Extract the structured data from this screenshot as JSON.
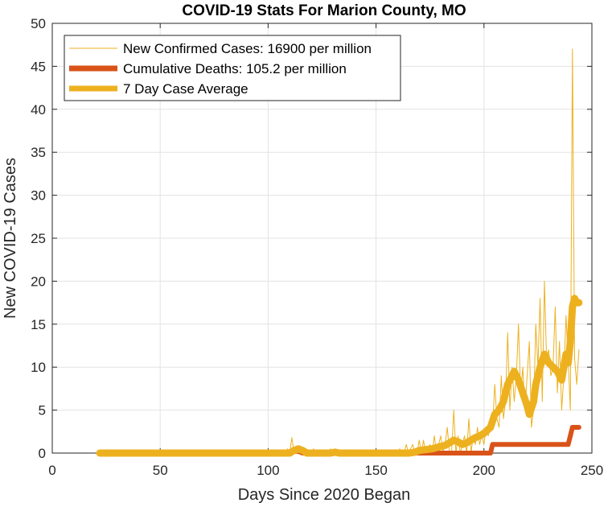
{
  "chart_data": {
    "type": "line",
    "title": "COVID-19 Stats For Marion County, MO",
    "xlabel": "Days Since 2020 Began",
    "ylabel": "New COVID-19 Cases",
    "xlim": [
      0,
      250
    ],
    "ylim": [
      0,
      50
    ],
    "xticks": [
      0,
      50,
      100,
      150,
      200,
      250
    ],
    "yticks": [
      0,
      5,
      10,
      15,
      20,
      25,
      30,
      35,
      40,
      45,
      50
    ],
    "grid": true,
    "legend_position": "top-left",
    "series": [
      {
        "name": "New Confirmed Cases: 16900 per million",
        "color": "#EDB120",
        "style": "thin",
        "points": [
          [
            22,
            0
          ],
          [
            108,
            0
          ],
          [
            109,
            0.5
          ],
          [
            110,
            0
          ],
          [
            111,
            1.8
          ],
          [
            112,
            0
          ],
          [
            113,
            0.5
          ],
          [
            114,
            0
          ],
          [
            115,
            0
          ],
          [
            116,
            0.6
          ],
          [
            117,
            0
          ],
          [
            120,
            0
          ],
          [
            121,
            0.5
          ],
          [
            122,
            0
          ],
          [
            128,
            0
          ],
          [
            129,
            0.5
          ],
          [
            130,
            0
          ],
          [
            160,
            0
          ],
          [
            161,
            0.5
          ],
          [
            162,
            0
          ],
          [
            163,
            0
          ],
          [
            164,
            1
          ],
          [
            165,
            0
          ],
          [
            166,
            0.5
          ],
          [
            167,
            1
          ],
          [
            168,
            0
          ],
          [
            169,
            0
          ],
          [
            170,
            1.5
          ],
          [
            171,
            0
          ],
          [
            172,
            1.5
          ],
          [
            173,
            0
          ],
          [
            174,
            0.5
          ],
          [
            175,
            1
          ],
          [
            176,
            0
          ],
          [
            177,
            2
          ],
          [
            178,
            0
          ],
          [
            179,
            1
          ],
          [
            180,
            2
          ],
          [
            181,
            0
          ],
          [
            182,
            1
          ],
          [
            183,
            3
          ],
          [
            184,
            0
          ],
          [
            185,
            0
          ],
          [
            186,
            5
          ],
          [
            187,
            0
          ],
          [
            188,
            2
          ],
          [
            189,
            0
          ],
          [
            190,
            1
          ],
          [
            191,
            2
          ],
          [
            192,
            0
          ],
          [
            193,
            4
          ],
          [
            194,
            0
          ],
          [
            195,
            2
          ],
          [
            196,
            1
          ],
          [
            197,
            3
          ],
          [
            198,
            1
          ],
          [
            199,
            2
          ],
          [
            200,
            1
          ],
          [
            201,
            3
          ],
          [
            202,
            2
          ],
          [
            203,
            4
          ],
          [
            204,
            3
          ],
          [
            205,
            8
          ],
          [
            206,
            4
          ],
          [
            207,
            3
          ],
          [
            208,
            9
          ],
          [
            209,
            4
          ],
          [
            210,
            6
          ],
          [
            211,
            14
          ],
          [
            212,
            5
          ],
          [
            213,
            10
          ],
          [
            214,
            6
          ],
          [
            215,
            9
          ],
          [
            216,
            15
          ],
          [
            217,
            7
          ],
          [
            218,
            10
          ],
          [
            219,
            5
          ],
          [
            220,
            9
          ],
          [
            221,
            13
          ],
          [
            222,
            3
          ],
          [
            223,
            5
          ],
          [
            224,
            15
          ],
          [
            225,
            10
          ],
          [
            226,
            18
          ],
          [
            227,
            6
          ],
          [
            228,
            20
          ],
          [
            229,
            11
          ],
          [
            230,
            12
          ],
          [
            231,
            9
          ],
          [
            232,
            10
          ],
          [
            233,
            17
          ],
          [
            234,
            7
          ],
          [
            235,
            13
          ],
          [
            236,
            5
          ],
          [
            237,
            9
          ],
          [
            238,
            16
          ],
          [
            239,
            11
          ],
          [
            240,
            5
          ],
          [
            241,
            47
          ],
          [
            242,
            11
          ],
          [
            243,
            8
          ],
          [
            244,
            12
          ]
        ]
      },
      {
        "name": "Cumulative Deaths: 105.2 per million",
        "color": "#D95319",
        "style": "medium",
        "points": [
          [
            22,
            0
          ],
          [
            110,
            0
          ],
          [
            112,
            0.2
          ],
          [
            114,
            0.2
          ],
          [
            116,
            0
          ],
          [
            126,
            0
          ],
          [
            128,
            0.1
          ],
          [
            131,
            0.1
          ],
          [
            133,
            0
          ],
          [
            203,
            0
          ],
          [
            204,
            1
          ],
          [
            238,
            1
          ],
          [
            239,
            1
          ],
          [
            240,
            2
          ],
          [
            241,
            3
          ],
          [
            244,
            3
          ]
        ]
      },
      {
        "name": "7 Day Case Average",
        "color": "#EDB120",
        "style": "thick",
        "points": [
          [
            22,
            0
          ],
          [
            110,
            0
          ],
          [
            112,
            0.3
          ],
          [
            114,
            0.5
          ],
          [
            116,
            0.3
          ],
          [
            118,
            0
          ],
          [
            129,
            0
          ],
          [
            131,
            0.1
          ],
          [
            133,
            0
          ],
          [
            165,
            0
          ],
          [
            168,
            0.1
          ],
          [
            170,
            0.3
          ],
          [
            173,
            0.4
          ],
          [
            176,
            0.5
          ],
          [
            179,
            0.7
          ],
          [
            182,
            0.9
          ],
          [
            184,
            1.2
          ],
          [
            186,
            1.5
          ],
          [
            188,
            1.3
          ],
          [
            190,
            1
          ],
          [
            192,
            1.2
          ],
          [
            194,
            1.5
          ],
          [
            196,
            1.8
          ],
          [
            198,
            2
          ],
          [
            200,
            2.3
          ],
          [
            203,
            3
          ],
          [
            205,
            4.5
          ],
          [
            207,
            5
          ],
          [
            209,
            6
          ],
          [
            211,
            8
          ],
          [
            213,
            9
          ],
          [
            214,
            9.5
          ],
          [
            216,
            8.5
          ],
          [
            218,
            7
          ],
          [
            220,
            5.5
          ],
          [
            221,
            4.5
          ],
          [
            223,
            6
          ],
          [
            224,
            8
          ],
          [
            226,
            10
          ],
          [
            228,
            11.5
          ],
          [
            230,
            10.5
          ],
          [
            232,
            10
          ],
          [
            234,
            9.5
          ],
          [
            236,
            8.5
          ],
          [
            237,
            10
          ],
          [
            238,
            11.5
          ],
          [
            239,
            10.5
          ],
          [
            240,
            13
          ],
          [
            241,
            17
          ],
          [
            242,
            18
          ],
          [
            243,
            17.5
          ],
          [
            244,
            17.5
          ]
        ]
      }
    ]
  }
}
